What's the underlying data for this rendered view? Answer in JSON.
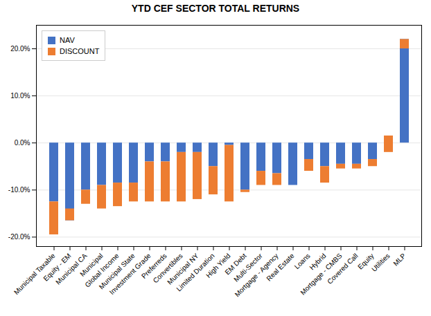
{
  "chart_data": {
    "type": "bar",
    "title": "YTD CEF SECTOR TOTAL RETURNS",
    "categories": [
      "Municipal Taxable",
      "Equity - EM",
      "Municipal CA",
      "Municipal",
      "Global Income",
      "Municipal State",
      "Investment Grade",
      "Preferreds",
      "Convertibles",
      "Municipal NY",
      "Limited Duration",
      "High Yield",
      "EM Debt",
      "Multi-Sector",
      "Mortgage - Agency",
      "Real Estate",
      "Loans",
      "Hybrid",
      "Mortgage - CMBS",
      "Covered Call",
      "Equity",
      "Utilities",
      "MLP"
    ],
    "series": [
      {
        "name": "NAV",
        "color": "#4472c4",
        "values": [
          -12.5,
          -16.5,
          -10.0,
          -9.0,
          -8.5,
          -8.5,
          -4.0,
          -4.0,
          -2.0,
          -2.0,
          -5.0,
          -0.5,
          -10.0,
          -6.0,
          -6.5,
          -9.0,
          -3.5,
          -5.0,
          -4.5,
          -4.5,
          -3.5,
          1.5,
          22.0
        ]
      },
      {
        "name": "DISCOUNT",
        "color": "#ed7d31",
        "values": [
          -7.0,
          2.5,
          -3.0,
          -5.0,
          -5.0,
          -4.0,
          -8.5,
          -8.5,
          -10.5,
          -10.0,
          -6.0,
          -12.0,
          -0.5,
          -3.0,
          -2.5,
          0.0,
          -2.5,
          -3.5,
          -1.0,
          -1.0,
          -1.5,
          -3.5,
          -2.0
        ]
      }
    ],
    "stacked": true,
    "ylim": [
      -22,
      25
    ],
    "yticks": [
      {
        "value": -20,
        "label": "-20.0%"
      },
      {
        "value": -10,
        "label": "-10.0%"
      },
      {
        "value": 0,
        "label": "0.0%"
      },
      {
        "value": 10,
        "label": "10.0%"
      },
      {
        "value": 20,
        "label": "20.0%"
      }
    ],
    "grid": true,
    "legend": "upper left"
  }
}
